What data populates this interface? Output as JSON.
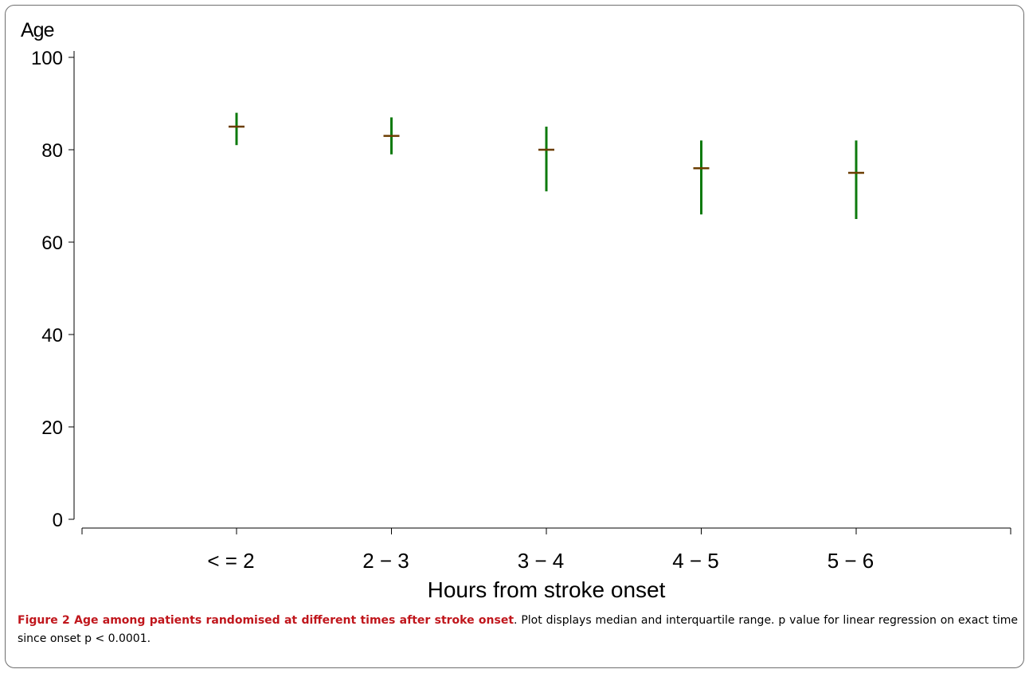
{
  "chart_data": {
    "type": "scatter",
    "title": "",
    "ylabel": "Age",
    "xlabel": "Hours from stroke onset",
    "ylim": [
      0,
      100
    ],
    "yticks": [
      0,
      20,
      40,
      60,
      80,
      100
    ],
    "categories": [
      "< =  2",
      "2 − 3",
      "3 − 4",
      "4 − 5",
      "5 − 6"
    ],
    "median": [
      85,
      83,
      80,
      76,
      75
    ],
    "q1": [
      81,
      79,
      71,
      66,
      65
    ],
    "q3": [
      88,
      87,
      85,
      82,
      82
    ],
    "grid": false,
    "colors": {
      "range": "#0d7a0d",
      "median": "#6b3d00",
      "axis": "#000000"
    }
  },
  "caption": {
    "title": "Figure 2 Age among patients randomised at different times after stroke onset",
    "body": ". Plot displays median and interquartile range. p value for linear regression on exact time since onset p < 0.0001."
  }
}
